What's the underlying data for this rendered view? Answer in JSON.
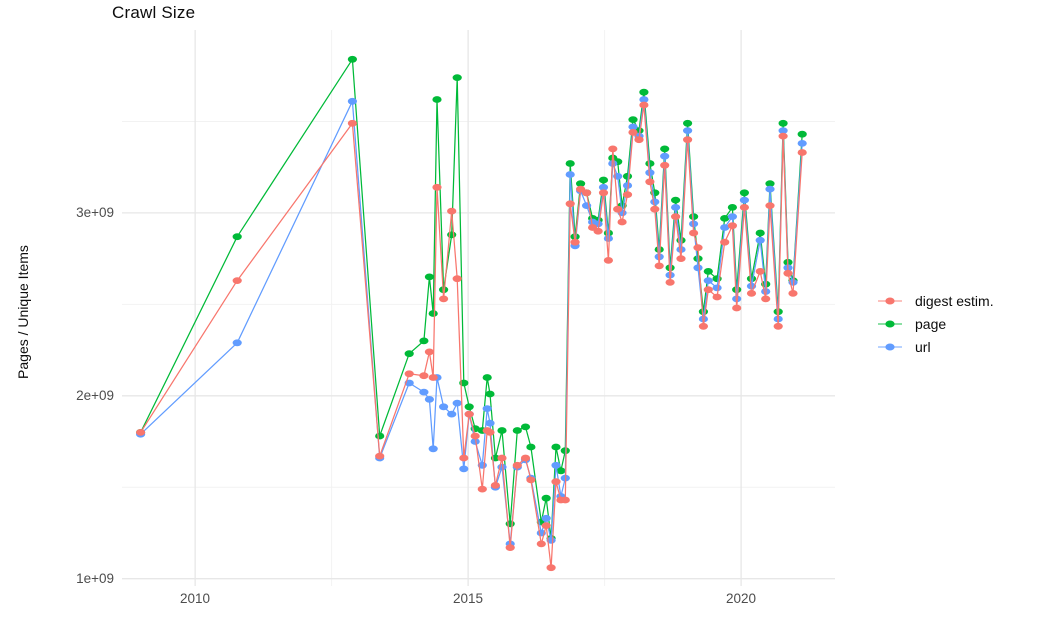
{
  "title": "Crawl Size",
  "y_axis": {
    "label": "Pages / Unique Items",
    "tick_values": [
      1,
      2,
      3
    ],
    "tick_labels": [
      "1e+09",
      "2e+09",
      "3e+09"
    ],
    "minor_ticks": [
      1.5,
      2.5,
      3.5
    ]
  },
  "x_axis": {
    "tick_values": [
      2010,
      2015,
      2020
    ],
    "tick_labels": [
      "2010",
      "2015",
      "2020"
    ],
    "minor_ticks": [
      2012.5,
      2017.5
    ]
  },
  "legend": {
    "items": [
      {
        "label": "digest estim.",
        "color": "#F8766D"
      },
      {
        "label": "page",
        "color": "#00BA38"
      },
      {
        "label": "url",
        "color": "#619CFF"
      }
    ]
  },
  "style": {
    "grid_major_color": "#e7e7e7",
    "grid_minor_color": "#f2f2f2",
    "tick_label_color": "#4d4d4d",
    "text_color": "#0d0d0d",
    "background": "#ffffff"
  },
  "chart_data": {
    "type": "line",
    "title": "Crawl Size",
    "xlabel": "",
    "ylabel": "Pages / Unique Items",
    "y_unit": "items ×1e9",
    "x_unit": "year (decimal, crawl date)",
    "grid": true,
    "legend_position": "right",
    "xlim": [
      2008.66,
      2021.72
    ],
    "ylim": [
      0.96,
      4.0
    ],
    "x": [
      2009.0,
      2010.77,
      2012.88,
      2013.38,
      2013.92,
      2014.19,
      2014.29,
      2014.36,
      2014.43,
      2014.55,
      2014.7,
      2014.8,
      2014.92,
      2015.02,
      2015.13,
      2015.26,
      2015.35,
      2015.4,
      2015.5,
      2015.62,
      2015.77,
      2015.9,
      2016.05,
      2016.15,
      2016.34,
      2016.43,
      2016.52,
      2016.61,
      2016.7,
      2016.78,
      2016.87,
      2016.96,
      2017.06,
      2017.17,
      2017.28,
      2017.38,
      2017.48,
      2017.57,
      2017.65,
      2017.74,
      2017.82,
      2017.92,
      2018.02,
      2018.13,
      2018.22,
      2018.33,
      2018.42,
      2018.5,
      2018.6,
      2018.7,
      2018.8,
      2018.9,
      2019.02,
      2019.13,
      2019.21,
      2019.31,
      2019.4,
      2019.56,
      2019.7,
      2019.84,
      2019.92,
      2020.06,
      2020.19,
      2020.35,
      2020.45,
      2020.53,
      2020.68,
      2020.77,
      2020.86,
      2020.95,
      2021.12
    ],
    "series": [
      {
        "name": "digest estim.",
        "color": "#F8766D",
        "values": [
          1.8,
          2.63,
          3.49,
          1.67,
          2.12,
          2.11,
          2.24,
          2.1,
          3.14,
          2.53,
          3.01,
          2.64,
          1.66,
          1.9,
          1.78,
          1.49,
          1.81,
          1.8,
          1.51,
          1.66,
          1.17,
          1.62,
          1.66,
          1.54,
          1.19,
          1.29,
          1.06,
          1.53,
          1.43,
          1.43,
          3.05,
          2.84,
          3.13,
          3.11,
          2.92,
          2.9,
          3.11,
          2.74,
          3.35,
          3.02,
          2.95,
          3.1,
          3.44,
          3.4,
          3.59,
          3.17,
          3.02,
          2.71,
          3.26,
          2.62,
          2.98,
          2.75,
          3.4,
          2.89,
          2.81,
          2.38,
          2.58,
          2.54,
          2.84,
          2.93,
          2.48,
          3.03,
          2.56,
          2.68,
          2.53,
          3.04,
          2.38,
          3.42,
          2.67,
          2.56,
          3.33
        ]
      },
      {
        "name": "page",
        "color": "#00BA38",
        "values": [
          1.8,
          2.87,
          3.84,
          1.78,
          2.23,
          2.3,
          2.65,
          2.45,
          3.62,
          2.58,
          2.88,
          3.74,
          2.07,
          1.94,
          1.82,
          1.81,
          2.1,
          2.01,
          1.66,
          1.81,
          1.3,
          1.81,
          1.83,
          1.72,
          1.31,
          1.44,
          1.22,
          1.72,
          1.59,
          1.7,
          3.27,
          2.87,
          3.16,
          3.11,
          2.97,
          2.96,
          3.18,
          2.89,
          3.3,
          3.28,
          3.04,
          3.2,
          3.51,
          3.45,
          3.66,
          3.27,
          3.11,
          2.8,
          3.35,
          2.7,
          3.07,
          2.85,
          3.49,
          2.98,
          2.75,
          2.46,
          2.68,
          2.64,
          2.97,
          3.03,
          2.58,
          3.11,
          2.64,
          2.89,
          2.61,
          3.16,
          2.46,
          3.49,
          2.73,
          2.63,
          3.43
        ]
      },
      {
        "name": "url",
        "color": "#619CFF",
        "values": [
          1.79,
          2.29,
          3.61,
          1.66,
          2.07,
          2.02,
          1.98,
          1.71,
          2.1,
          1.94,
          1.9,
          1.96,
          1.6,
          1.9,
          1.75,
          1.62,
          1.93,
          1.85,
          1.5,
          1.61,
          1.19,
          1.61,
          1.65,
          1.55,
          1.25,
          1.33,
          1.21,
          1.62,
          1.45,
          1.55,
          3.21,
          2.82,
          3.12,
          3.04,
          2.95,
          2.94,
          3.14,
          2.86,
          3.27,
          3.2,
          3.0,
          3.15,
          3.47,
          3.42,
          3.62,
          3.22,
          3.06,
          2.76,
          3.31,
          2.66,
          3.03,
          2.8,
          3.45,
          2.94,
          2.7,
          2.42,
          2.63,
          2.59,
          2.92,
          2.98,
          2.53,
          3.07,
          2.6,
          2.85,
          2.57,
          3.13,
          2.42,
          3.45,
          2.7,
          2.62,
          3.38
        ]
      }
    ],
    "draw_order": [
      "page",
      "url",
      "digest estim."
    ]
  }
}
